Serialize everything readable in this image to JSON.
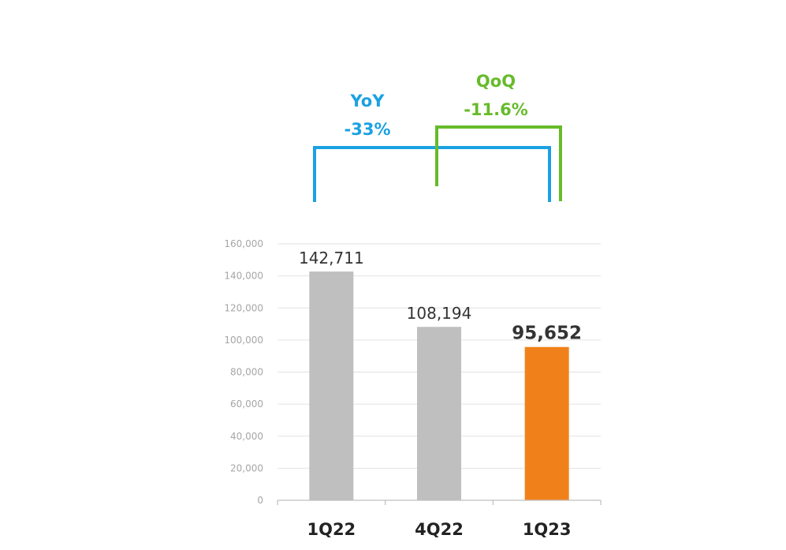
{
  "chart_data": {
    "type": "bar",
    "categories": [
      "1Q22",
      "4Q22",
      "1Q23"
    ],
    "values": [
      142711,
      108194,
      95652
    ],
    "data_labels": [
      "142,711",
      "108,194",
      "95,652"
    ],
    "highlight_index": 2,
    "ylim": [
      0,
      160000
    ],
    "yticks": [
      0,
      20000,
      40000,
      60000,
      80000,
      100000,
      120000,
      140000,
      160000
    ],
    "ytick_labels": [
      "0",
      "20,000",
      "40,000",
      "60,000",
      "80,000",
      "100,000",
      "120,000",
      "140,000",
      "160,000"
    ],
    "grid": true,
    "legend": "none",
    "title": "",
    "xlabel": "",
    "ylabel": "",
    "colors": {
      "bar_default": "#bfbfbf",
      "bar_highlight": "#f0811a",
      "grid": "#e2e2e2",
      "axis": "#bfbfbf",
      "tick_text": "#a6a6a6",
      "label_text": "#333333",
      "category_text": "#222222"
    },
    "annotations": [
      {
        "id": "yoy",
        "label": "YoY",
        "value": "-33%",
        "from": "1Q22",
        "to": "1Q23",
        "color": "#1ba1e2"
      },
      {
        "id": "qoq",
        "label": "QoQ",
        "value": "-11.6%",
        "from": "4Q22",
        "to": "1Q23",
        "color": "#66bb2a"
      }
    ]
  }
}
